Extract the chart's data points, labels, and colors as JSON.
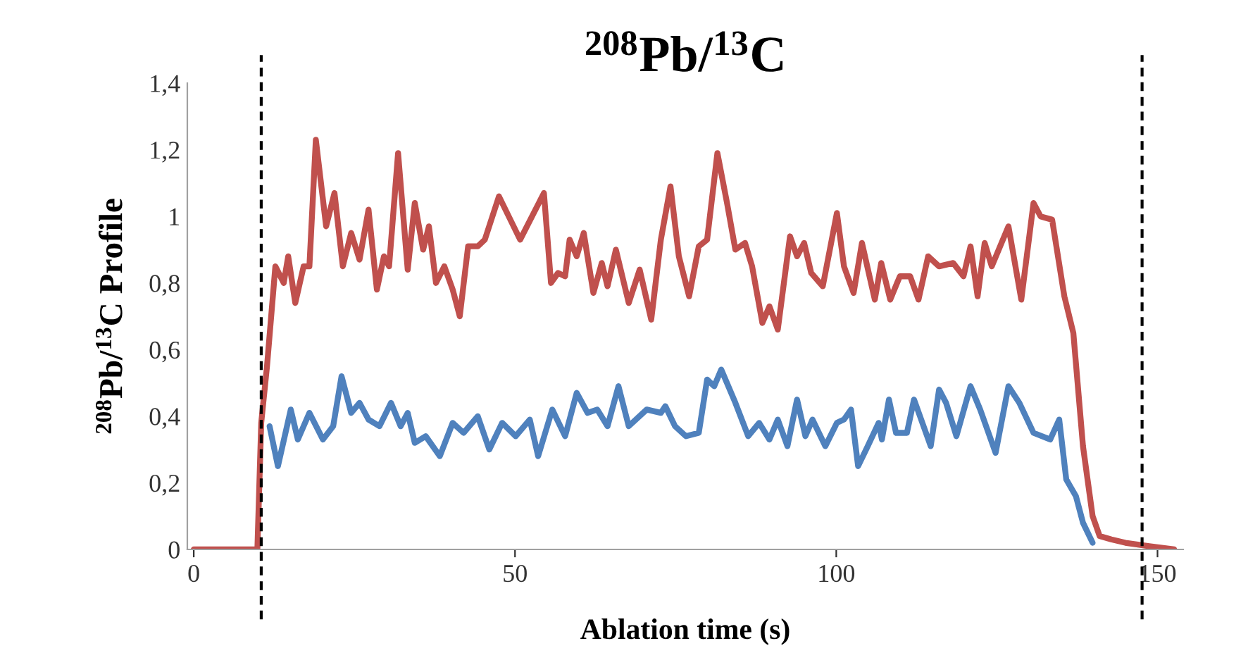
{
  "chart_data": {
    "type": "line",
    "title": "$^{208}$Pb/$^{13}$C",
    "xlabel": "Ablation time (s)",
    "ylabel": "$^{208}$Pb/$^{13}$C Profile",
    "xlim": [
      -1,
      154
    ],
    "xticks": [
      0,
      50,
      100,
      150
    ],
    "ylim": [
      0,
      1.4
    ],
    "yticks": [
      0,
      {
        "value": 0.2,
        "label": "0,2"
      },
      {
        "value": 0.4,
        "label": "0,4"
      },
      {
        "value": 0.6,
        "label": "0,6"
      },
      {
        "value": 0.8,
        "label": "0,8"
      },
      1,
      {
        "value": 1.2,
        "label": "1,2"
      },
      {
        "value": 1.4,
        "label": "1,4"
      }
    ],
    "grid": false,
    "legend": false,
    "marker": "none",
    "line_style": "solid",
    "ref_lines": [
      {
        "axis": "x",
        "value": 10.5,
        "color": "#000000",
        "line_style": "dashed"
      },
      {
        "axis": "x",
        "value": 147.6,
        "color": "#000000",
        "line_style": "dashed"
      }
    ],
    "series": [
      {
        "color": "#c0504d",
        "x": [
          0,
          3.7,
          9.9,
          10.5,
          11.4,
          12.7,
          14,
          14.7,
          15.8,
          17.1,
          18,
          19,
          20.6,
          21.9,
          23.2,
          24.5,
          25.8,
          27.2,
          28.5,
          29.6,
          30.4,
          31.8,
          33.3,
          34.4,
          35.7,
          36.6,
          37.7,
          39,
          40.3,
          41.4,
          42.7,
          44.2,
          45.3,
          47.5,
          50.8,
          54.5,
          55.6,
          56.7,
          57.8,
          58.5,
          59.6,
          60.7,
          62.2,
          63.5,
          64.4,
          65.7,
          67.7,
          69.4,
          71.2,
          72.7,
          74.2,
          75.5,
          77.1,
          78.6,
          79.9,
          81.5,
          83,
          84.3,
          85.8,
          86.9,
          88.5,
          89.6,
          90.9,
          92.8,
          93.9,
          95,
          96.1,
          97.9,
          100.1,
          101.2,
          102.7,
          104,
          106,
          107,
          108.4,
          109.9,
          111.5,
          112.8,
          114.3,
          116,
          118.2,
          119.8,
          120.9,
          122,
          123.1,
          124.2,
          126.8,
          128.8,
          130.7,
          131.8,
          133.6,
          135.5,
          136.9,
          138.4,
          139.9,
          141,
          142.8,
          145,
          148.7,
          152.6
        ],
        "values": [
          0,
          0,
          0,
          0.38,
          0.55,
          0.85,
          0.8,
          0.88,
          0.74,
          0.85,
          0.85,
          1.23,
          0.97,
          1.07,
          0.85,
          0.95,
          0.87,
          1.02,
          0.78,
          0.88,
          0.85,
          1.19,
          0.84,
          1.04,
          0.9,
          0.97,
          0.8,
          0.85,
          0.78,
          0.7,
          0.91,
          0.91,
          0.93,
          1.06,
          0.93,
          1.07,
          0.8,
          0.83,
          0.82,
          0.93,
          0.88,
          0.95,
          0.77,
          0.86,
          0.79,
          0.9,
          0.74,
          0.84,
          0.69,
          0.93,
          1.09,
          0.88,
          0.76,
          0.91,
          0.93,
          1.19,
          1.04,
          0.9,
          0.92,
          0.85,
          0.68,
          0.73,
          0.66,
          0.94,
          0.88,
          0.92,
          0.83,
          0.79,
          1.01,
          0.85,
          0.77,
          0.92,
          0.75,
          0.86,
          0.75,
          0.82,
          0.82,
          0.75,
          0.88,
          0.85,
          0.86,
          0.82,
          0.91,
          0.76,
          0.92,
          0.85,
          0.97,
          0.75,
          1.04,
          1.0,
          0.99,
          0.76,
          0.65,
          0.31,
          0.1,
          0.04,
          0.03,
          0.02,
          0.01,
          0
        ]
      },
      {
        "color": "#4f81bd",
        "x": [
          11.8,
          13.1,
          15.1,
          16.2,
          18,
          20.1,
          21.7,
          23,
          24.5,
          25.8,
          27.2,
          28.9,
          30.7,
          32.2,
          33.3,
          34.4,
          36.1,
          38.3,
          40.3,
          42,
          44.2,
          46,
          48,
          50.1,
          52.3,
          53.6,
          55.8,
          57.8,
          59.6,
          61.3,
          62.8,
          64.4,
          66.1,
          67.7,
          70.5,
          72.7,
          73.4,
          74.9,
          76.6,
          78.6,
          79.9,
          81,
          82.1,
          84.3,
          86.3,
          88,
          89.6,
          90.9,
          92.4,
          93.9,
          95.2,
          96.3,
          98.3,
          100.1,
          101.2,
          102.3,
          103.4,
          104.9,
          106.6,
          107.1,
          108.2,
          109.3,
          111,
          112.1,
          114.7,
          116,
          117.1,
          118.7,
          120.9,
          122.4,
          124.8,
          126.8,
          128.5,
          130.7,
          133.3,
          134.7,
          135.8,
          137.3,
          138.4,
          139.9
        ],
        "values": [
          0.37,
          0.25,
          0.42,
          0.33,
          0.41,
          0.33,
          0.37,
          0.52,
          0.41,
          0.44,
          0.39,
          0.37,
          0.44,
          0.37,
          0.41,
          0.32,
          0.34,
          0.28,
          0.38,
          0.35,
          0.4,
          0.3,
          0.38,
          0.34,
          0.39,
          0.28,
          0.42,
          0.34,
          0.47,
          0.41,
          0.42,
          0.37,
          0.49,
          0.37,
          0.42,
          0.41,
          0.43,
          0.37,
          0.34,
          0.35,
          0.51,
          0.49,
          0.54,
          0.44,
          0.34,
          0.38,
          0.33,
          0.39,
          0.31,
          0.45,
          0.34,
          0.39,
          0.31,
          0.38,
          0.39,
          0.42,
          0.25,
          0.31,
          0.38,
          0.33,
          0.45,
          0.35,
          0.35,
          0.45,
          0.31,
          0.48,
          0.44,
          0.34,
          0.49,
          0.42,
          0.29,
          0.49,
          0.44,
          0.35,
          0.33,
          0.39,
          0.21,
          0.16,
          0.08,
          0.02
        ]
      }
    ]
  }
}
